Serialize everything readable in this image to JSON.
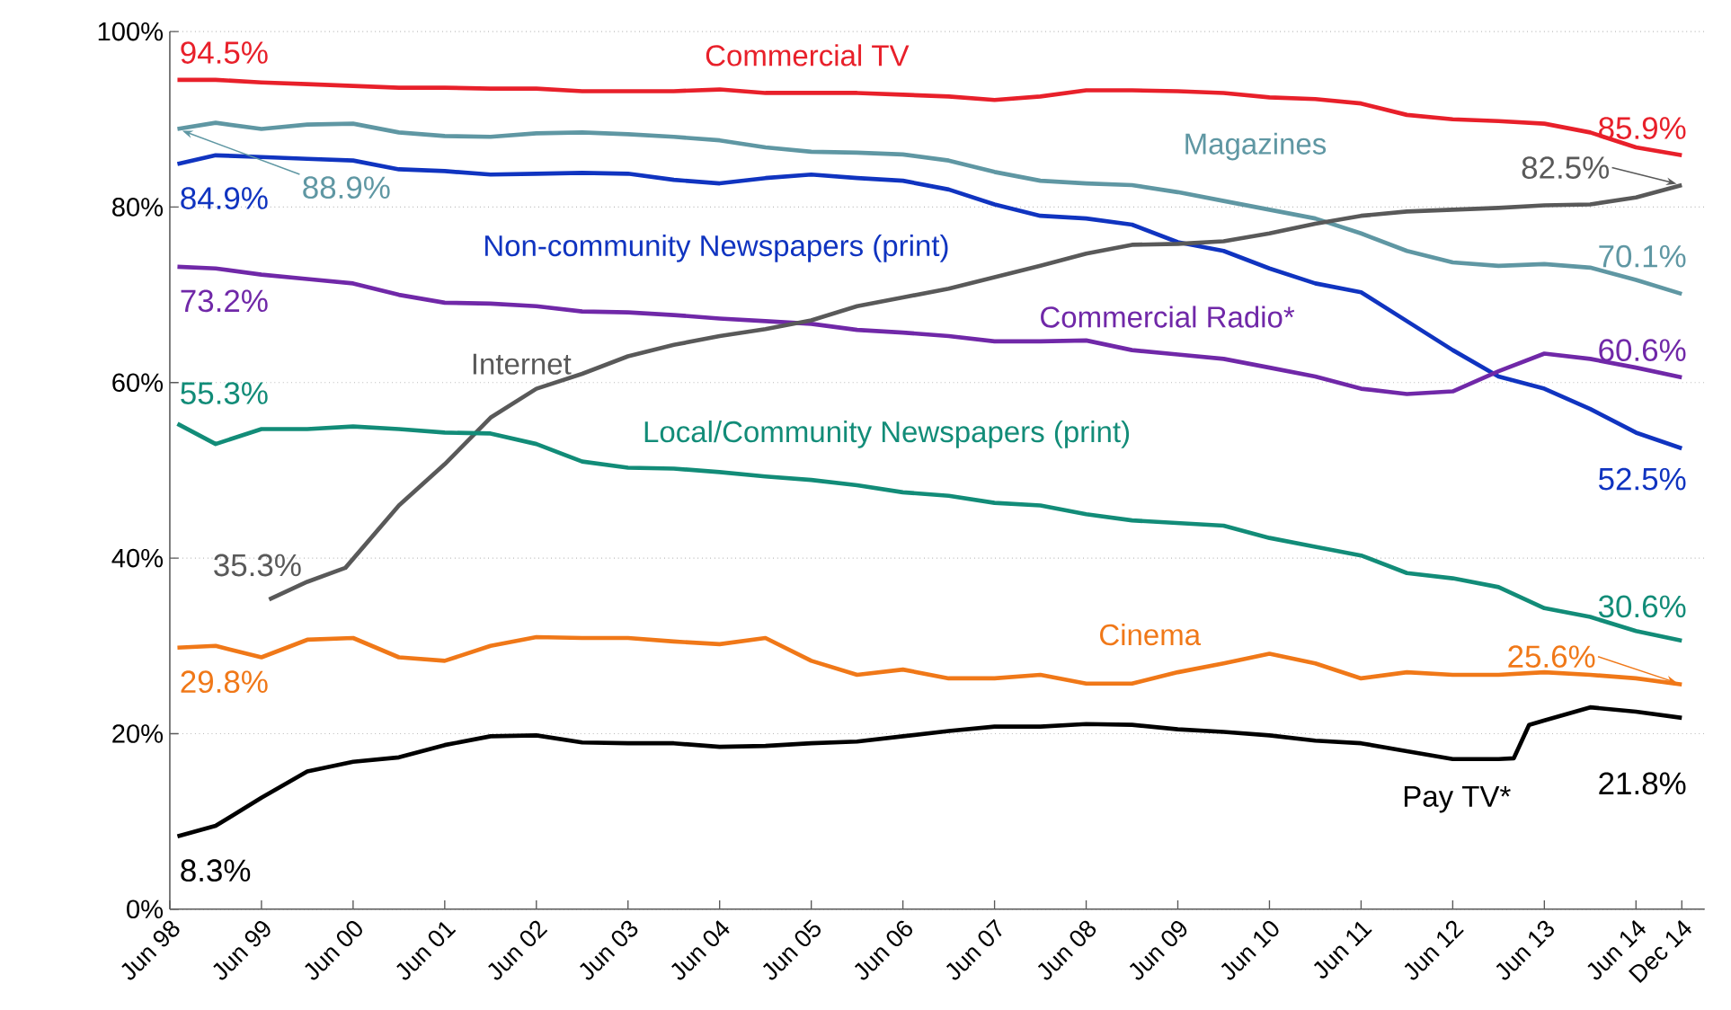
{
  "chart_data": {
    "type": "line",
    "x": [
      "1998-07",
      "1998-12",
      "1999-06",
      "1999-12",
      "2000-06",
      "2000-12",
      "2001-06",
      "2001-12",
      "2002-06",
      "2002-12",
      "2003-06",
      "2003-12",
      "2004-06",
      "2004-12",
      "2005-06",
      "2005-12",
      "2006-06",
      "2006-12",
      "2007-06",
      "2007-12",
      "2008-06",
      "2008-12",
      "2009-06",
      "2009-12",
      "2010-06",
      "2010-12",
      "2011-06",
      "2011-12",
      "2012-06",
      "2012-12",
      "2013-06",
      "2013-12",
      "2014-06",
      "2014-12"
    ],
    "series": [
      {
        "name": "Commercial TV",
        "color": "#e8202a",
        "values": [
          94.5,
          94.5,
          94.2,
          94.0,
          93.8,
          93.6,
          93.6,
          93.5,
          93.5,
          93.2,
          93.2,
          93.2,
          93.4,
          93.0,
          93.0,
          93.0,
          92.8,
          92.6,
          92.2,
          92.6,
          93.3,
          93.3,
          93.2,
          93.0,
          92.5,
          92.3,
          91.8,
          90.5,
          90.0,
          89.8,
          89.5,
          88.5,
          86.8,
          85.9
        ],
        "value_labels": [
          "94.5%",
          null,
          null,
          null,
          null,
          null,
          null,
          null,
          null,
          null,
          null,
          null,
          null,
          null,
          null,
          null,
          null,
          null,
          null,
          null,
          null,
          null,
          null,
          null,
          null,
          null,
          null,
          null,
          null,
          null,
          null,
          null,
          null,
          "85.9%"
        ]
      },
      {
        "name": "Magazines",
        "color": "#5f97a3",
        "values": [
          88.9,
          89.6,
          88.9,
          89.4,
          89.5,
          88.5,
          88.1,
          88.0,
          88.4,
          88.5,
          88.3,
          88.0,
          87.6,
          86.8,
          86.3,
          86.2,
          86.0,
          85.3,
          84.0,
          83.0,
          82.7,
          82.5,
          81.7,
          80.7,
          79.7,
          78.7,
          77.0,
          75.0,
          73.7,
          73.3,
          73.5,
          73.1,
          71.7,
          70.1
        ],
        "value_labels": [
          "88.9%",
          null,
          null,
          null,
          null,
          null,
          null,
          null,
          null,
          null,
          null,
          null,
          null,
          null,
          null,
          null,
          null,
          null,
          null,
          null,
          null,
          null,
          null,
          null,
          null,
          null,
          null,
          null,
          null,
          null,
          null,
          null,
          null,
          "70.1%"
        ]
      },
      {
        "name": "Non-community Newspapers (print)",
        "color": "#1034c0",
        "values": [
          84.9,
          85.9,
          85.7,
          85.5,
          85.3,
          84.3,
          84.1,
          83.7,
          83.8,
          83.9,
          83.8,
          83.1,
          82.7,
          83.3,
          83.7,
          83.3,
          83.0,
          82.0,
          80.3,
          79.0,
          78.7,
          78.0,
          76.0,
          75.0,
          73.0,
          71.3,
          70.3,
          67.0,
          63.7,
          60.7,
          59.3,
          57.0,
          54.3,
          52.5
        ],
        "value_labels": [
          "84.9%",
          null,
          null,
          null,
          null,
          null,
          null,
          null,
          null,
          null,
          null,
          null,
          null,
          null,
          null,
          null,
          null,
          null,
          null,
          null,
          null,
          null,
          null,
          null,
          null,
          null,
          null,
          null,
          null,
          null,
          null,
          null,
          null,
          "52.5%"
        ]
      },
      {
        "name": "Commercial Radio*",
        "color": "#7028a8",
        "values": [
          73.2,
          73.0,
          72.3,
          71.8,
          71.3,
          70.0,
          69.1,
          69.0,
          68.7,
          68.1,
          68.0,
          67.7,
          67.3,
          67.0,
          66.7,
          66.0,
          65.7,
          65.3,
          64.7,
          64.7,
          64.8,
          63.7,
          63.2,
          62.7,
          61.7,
          60.7,
          59.3,
          58.7,
          59.0,
          61.3,
          63.3,
          62.7,
          61.7,
          60.6
        ],
        "value_labels": [
          "73.2%",
          null,
          null,
          null,
          null,
          null,
          null,
          null,
          null,
          null,
          null,
          null,
          null,
          null,
          null,
          null,
          null,
          null,
          null,
          null,
          null,
          null,
          null,
          null,
          null,
          null,
          null,
          null,
          null,
          null,
          null,
          null,
          null,
          "60.6%"
        ]
      },
      {
        "name": "Internet",
        "color": "#595959",
        "x": [
          "1999-07",
          "1999-12",
          "2000-05",
          "2000-12",
          "2001-06",
          "2001-12",
          "2002-06",
          "2002-12",
          "2003-06",
          "2003-12",
          "2004-06",
          "2004-12",
          "2005-06",
          "2005-12",
          "2006-06",
          "2006-12",
          "2007-06",
          "2007-12",
          "2008-06",
          "2008-12",
          "2009-06",
          "2009-12",
          "2010-06",
          "2010-12",
          "2011-06",
          "2011-12",
          "2012-06",
          "2012-12",
          "2013-06",
          "2013-12",
          "2014-06",
          "2014-12"
        ],
        "values": [
          35.3,
          37.3,
          38.9,
          46.0,
          50.7,
          56.0,
          59.3,
          61.0,
          63.0,
          64.3,
          65.3,
          66.1,
          67.1,
          68.7,
          69.7,
          70.7,
          72.0,
          73.3,
          74.7,
          75.7,
          75.8,
          76.1,
          77.0,
          78.1,
          79.0,
          79.5,
          79.7,
          79.9,
          80.2,
          80.3,
          81.1,
          82.5
        ],
        "value_labels": [
          "35.3%",
          null,
          null,
          null,
          null,
          null,
          null,
          null,
          null,
          null,
          null,
          null,
          null,
          null,
          null,
          null,
          null,
          null,
          null,
          null,
          null,
          null,
          null,
          null,
          null,
          null,
          null,
          null,
          null,
          null,
          null,
          "82.5%"
        ]
      },
      {
        "name": "Local/Community Newspapers (print)",
        "color": "#128c78",
        "values": [
          55.3,
          53.0,
          54.7,
          54.7,
          55.0,
          54.7,
          54.3,
          54.2,
          53.0,
          51.0,
          50.3,
          50.2,
          49.8,
          49.3,
          48.9,
          48.3,
          47.5,
          47.1,
          46.3,
          46.0,
          45.0,
          44.3,
          44.0,
          43.7,
          42.3,
          41.3,
          40.3,
          38.3,
          37.7,
          36.7,
          34.3,
          33.3,
          31.7,
          30.6
        ],
        "value_labels": [
          "55.3%",
          null,
          null,
          null,
          null,
          null,
          null,
          null,
          null,
          null,
          null,
          null,
          null,
          null,
          null,
          null,
          null,
          null,
          null,
          null,
          null,
          null,
          null,
          null,
          null,
          null,
          null,
          null,
          null,
          null,
          null,
          null,
          null,
          "30.6%"
        ]
      },
      {
        "name": "Cinema",
        "color": "#f07818",
        "values": [
          29.8,
          30.0,
          28.7,
          30.7,
          30.9,
          28.7,
          28.3,
          30.0,
          31.0,
          30.9,
          30.9,
          30.5,
          30.2,
          30.9,
          28.3,
          26.7,
          27.3,
          26.3,
          26.3,
          26.7,
          25.7,
          25.7,
          27.0,
          28.0,
          29.1,
          28.0,
          26.3,
          27.0,
          26.7,
          26.7,
          27.0,
          26.7,
          26.3,
          25.6
        ],
        "value_labels": [
          "29.8%",
          null,
          null,
          null,
          null,
          null,
          null,
          null,
          null,
          null,
          null,
          null,
          null,
          null,
          null,
          null,
          null,
          null,
          null,
          null,
          null,
          null,
          null,
          null,
          null,
          null,
          null,
          null,
          null,
          null,
          null,
          null,
          null,
          "25.6%"
        ]
      },
      {
        "name": "Pay TV*",
        "color": "#000000",
        "x": [
          "1998-07",
          "1998-12",
          "1999-06",
          "1999-12",
          "2000-06",
          "2000-12",
          "2001-06",
          "2001-12",
          "2002-06",
          "2002-12",
          "2003-06",
          "2003-12",
          "2004-06",
          "2004-12",
          "2005-06",
          "2005-12",
          "2006-06",
          "2006-12",
          "2007-06",
          "2007-12",
          "2008-06",
          "2008-12",
          "2009-06",
          "2009-12",
          "2010-06",
          "2010-12",
          "2011-06",
          "2011-12",
          "2012-06",
          "2012-12",
          "2013-02",
          "2013-04",
          "2013-06",
          "2013-12",
          "2014-06",
          "2014-12"
        ],
        "values": [
          8.3,
          9.5,
          12.7,
          15.7,
          16.8,
          17.3,
          18.7,
          19.7,
          19.8,
          19.0,
          18.9,
          18.9,
          18.5,
          18.6,
          18.9,
          19.1,
          19.7,
          20.3,
          20.8,
          20.8,
          21.1,
          21.0,
          20.5,
          20.2,
          19.8,
          19.2,
          18.9,
          18.0,
          17.1,
          17.1,
          17.2,
          21.0,
          21.5,
          23.0,
          22.5,
          21.8
        ],
        "value_labels": [
          "8.3%",
          null,
          null,
          null,
          null,
          null,
          null,
          null,
          null,
          null,
          null,
          null,
          null,
          null,
          null,
          null,
          null,
          null,
          null,
          null,
          null,
          null,
          null,
          null,
          null,
          null,
          null,
          null,
          null,
          null,
          null,
          null,
          null,
          null,
          null,
          "21.8%"
        ]
      }
    ],
    "xlim": [
      "1998-06",
      "2015-03"
    ],
    "xticks": [
      {
        "value": "1998-06",
        "label": "Jun 98"
      },
      {
        "value": "1999-06",
        "label": "Jun 99"
      },
      {
        "value": "2000-06",
        "label": "Jun 00"
      },
      {
        "value": "2001-06",
        "label": "Jun 01"
      },
      {
        "value": "2002-06",
        "label": "Jun 02"
      },
      {
        "value": "2003-06",
        "label": "Jun 03"
      },
      {
        "value": "2004-06",
        "label": "Jun 04"
      },
      {
        "value": "2005-06",
        "label": "Jun 05"
      },
      {
        "value": "2006-06",
        "label": "Jun 06"
      },
      {
        "value": "2007-06",
        "label": "Jun 07"
      },
      {
        "value": "2008-06",
        "label": "Jun 08"
      },
      {
        "value": "2009-06",
        "label": "Jun 09"
      },
      {
        "value": "2010-06",
        "label": "Jun 10"
      },
      {
        "value": "2011-06",
        "label": "Jun 11"
      },
      {
        "value": "2012-06",
        "label": "Jun 12"
      },
      {
        "value": "2013-06",
        "label": "Jun 13"
      },
      {
        "value": "2014-06",
        "label": "Jun 14"
      },
      {
        "value": "2014-12",
        "label": "Dec 14"
      }
    ],
    "ylim": [
      0,
      100
    ],
    "yticks": [
      {
        "value": 0,
        "label": "0%"
      },
      {
        "value": 20,
        "label": "20%"
      },
      {
        "value": 40,
        "label": "40%"
      },
      {
        "value": 60,
        "label": "60%"
      },
      {
        "value": 80,
        "label": "80%"
      },
      {
        "value": 100,
        "label": "100%"
      }
    ],
    "grid": "y"
  }
}
